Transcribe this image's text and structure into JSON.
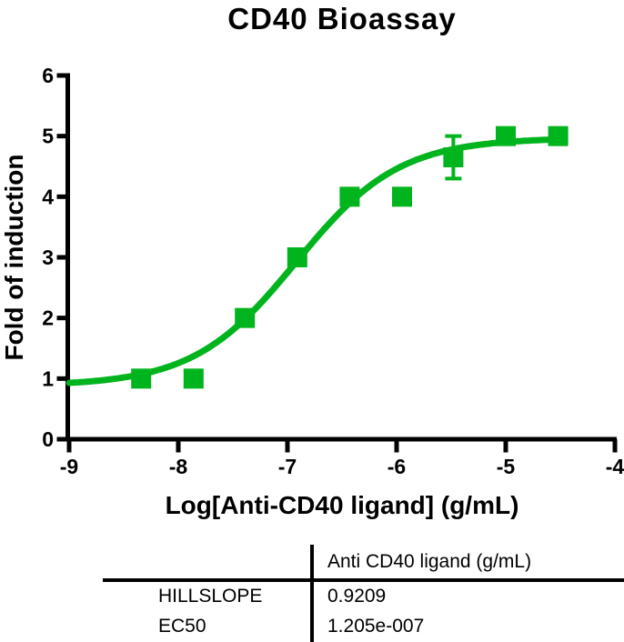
{
  "title": "CD40 Bioassay",
  "chart_data": {
    "type": "scatter",
    "title": "CD40 Bioassay",
    "xlabel": "Log[Anti-CD40 ligand] (g/mL)",
    "ylabel": "Fold of induction",
    "xlim": [
      -9,
      -4
    ],
    "ylim": [
      0,
      6
    ],
    "x_ticks": [
      "-9",
      "-8",
      "-7",
      "-6",
      "-5",
      "-4"
    ],
    "x_tick_values": [
      -9,
      -8,
      -7,
      -6,
      -5,
      -4
    ],
    "y_ticks": [
      "0",
      "1",
      "2",
      "3",
      "4",
      "5",
      "6"
    ],
    "y_tick_values": [
      0,
      1,
      2,
      3,
      4,
      5,
      6
    ],
    "grid": false,
    "legend": "none",
    "series": [
      {
        "name": "Anti CD40 ligand (g/mL)",
        "marker": "square",
        "color": "#00b41e",
        "points": [
          {
            "x": -8.34,
            "y": 1.0
          },
          {
            "x": -7.86,
            "y": 1.0
          },
          {
            "x": -7.39,
            "y": 2.0
          },
          {
            "x": -6.91,
            "y": 3.0
          },
          {
            "x": -6.43,
            "y": 4.0
          },
          {
            "x": -5.95,
            "y": 4.0
          },
          {
            "x": -5.48,
            "y": 4.65,
            "error": 0.35
          },
          {
            "x": -5.0,
            "y": 5.0
          },
          {
            "x": -4.52,
            "y": 5.0
          }
        ]
      }
    ],
    "fit_curve": {
      "model": "4PL-sigmoid",
      "bottom": 0.88,
      "top": 4.97,
      "logEC50": -6.919,
      "hillslope": 0.9209,
      "x_range": [
        -9.0,
        -4.5
      ],
      "color": "#00b41e"
    }
  },
  "results_table": {
    "column_header": "Anti CD40 ligand (g/mL)",
    "rows": [
      {
        "label": "HILLSLOPE",
        "value": "0.9209"
      },
      {
        "label": "EC50",
        "value": "1.205e-007"
      }
    ]
  },
  "colors": {
    "curve": "#00b41e",
    "axis": "#000000",
    "text": "#000000",
    "background": "#ffffff"
  }
}
